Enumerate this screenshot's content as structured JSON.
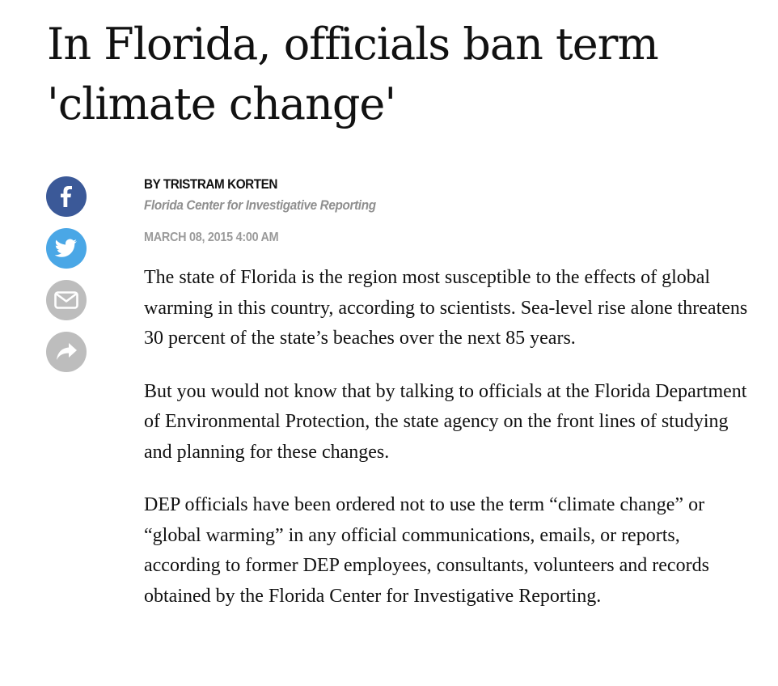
{
  "article": {
    "headline": "In Florida, officials ban term 'climate change'",
    "byline": "BY TRISTRAM KORTEN",
    "affiliation": "Florida Center for Investigative Reporting",
    "date": "MARCH 08, 2015 4:00 AM",
    "paragraphs": [
      "The state of Florida is the region most susceptible to the effects of global warming in this country, according to scientists. Sea-level rise alone threatens 30 percent of the state’s beaches over the next 85 years.",
      "But you would not know that by talking to officials at the Florida Department of Environmental Protection, the state agency on the front lines of studying and planning for these changes.",
      "DEP officials have been ordered not to use the term “climate change” or “global warming” in any official communications, emails, or reports, according to former DEP employees, consultants, volunteers and records obtained by the Florida Center for Investigative Reporting."
    ]
  },
  "share": {
    "buttons": [
      {
        "icon": "facebook-icon",
        "color": "#3b5998"
      },
      {
        "icon": "twitter-icon",
        "color": "#4aa7e6"
      },
      {
        "icon": "email-icon",
        "color": "#bdbdbd"
      },
      {
        "icon": "share-arrow-icon",
        "color": "#bdbdbd"
      }
    ]
  }
}
